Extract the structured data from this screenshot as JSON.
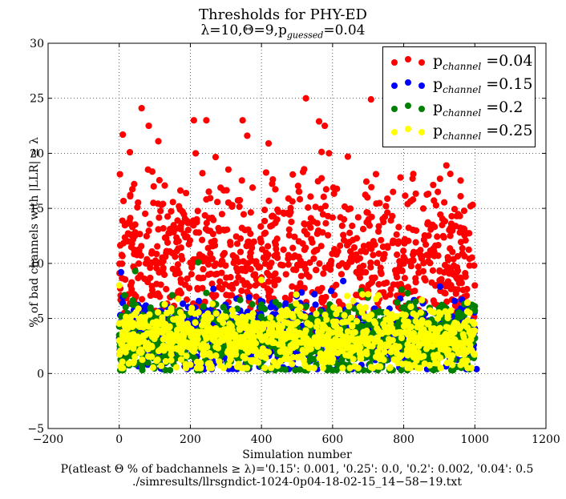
{
  "chart_data": {
    "type": "scatter",
    "title": "Thresholds for PHY-ED",
    "subtitle": "λ=10,Θ=9,p_guessed=0.04",
    "xlabel": "Simulation number",
    "ylabel": "% of bad channels with |LLR| ≥ λ",
    "xlim": [
      -200,
      1200
    ],
    "ylim": [
      -5,
      30
    ],
    "x_ticks": [
      -200,
      0,
      200,
      400,
      600,
      800,
      1000,
      1200
    ],
    "y_ticks": [
      -5,
      0,
      5,
      10,
      15,
      20,
      25,
      30
    ],
    "x_tick_labels": [
      "−200",
      "0",
      "200",
      "400",
      "600",
      "800",
      "1000",
      "1200"
    ],
    "y_tick_labels": [
      "−5",
      "0",
      "5",
      "10",
      "15",
      "20",
      "25",
      "30"
    ],
    "grid": true,
    "legend_position": "top-right",
    "series": [
      {
        "name": "p_channel =0.04",
        "label_main": "p",
        "label_sub": "channel",
        "label_val": " =0.04",
        "color": "#ff0000",
        "y_center": 9.8,
        "y_spread": 3.4,
        "y_min": 3.5,
        "y_max": 25,
        "highlights": [
          [
            2,
            18.1
          ],
          [
            10,
            21.7
          ],
          [
            30,
            20.1
          ],
          [
            42,
            17.2
          ],
          [
            63,
            24.1
          ],
          [
            83,
            22.5
          ],
          [
            210,
            23.0
          ],
          [
            245,
            23.0
          ],
          [
            215,
            20.0
          ],
          [
            347,
            23.0
          ],
          [
            360,
            21.6
          ],
          [
            420,
            20.9
          ],
          [
            525,
            25.0
          ],
          [
            562,
            22.9
          ],
          [
            578,
            22.5
          ],
          [
            643,
            19.7
          ],
          [
            708,
            24.9
          ],
          [
            920,
            18.9
          ],
          [
            825,
            17.7
          ],
          [
            960,
            16.1
          ]
        ]
      },
      {
        "name": "p_channel =0.15",
        "label_main": "p",
        "label_sub": "channel",
        "label_val": " =0.15",
        "color": "#0000ff",
        "y_center": 3.4,
        "y_spread": 1.5,
        "y_min": 0.4,
        "y_max": 9.3,
        "highlights": [
          [
            5,
            9.2
          ],
          [
            10,
            6.4
          ],
          [
            80,
            0.8
          ],
          [
            330,
            6.8
          ],
          [
            470,
            3.8
          ],
          [
            630,
            8.4
          ],
          [
            790,
            6.8
          ],
          [
            810,
            2.7
          ],
          [
            900,
            5.0
          ],
          [
            1005,
            0.4
          ]
        ]
      },
      {
        "name": "p_channel =0.2",
        "label_main": "p",
        "label_sub": "channel",
        "label_val": " =0.2",
        "color": "#008000",
        "y_center": 3.3,
        "y_spread": 1.5,
        "y_min": 0.3,
        "y_max": 10.2,
        "highlights": [
          [
            3,
            0.3
          ],
          [
            45,
            9.3
          ],
          [
            130,
            0.3
          ],
          [
            222,
            10.1
          ],
          [
            360,
            0.4
          ],
          [
            500,
            6.3
          ],
          [
            680,
            7.5
          ],
          [
            810,
            0.3
          ],
          [
            970,
            6.3
          ],
          [
            1000,
            6.1
          ]
        ]
      },
      {
        "name": "p_channel =0.25",
        "label_main": "p",
        "label_sub": "channel",
        "label_val": " =0.25",
        "color": "#ffff00",
        "y_center": 3.2,
        "y_spread": 1.4,
        "y_min": 0.5,
        "y_max": 8.6,
        "highlights": [
          [
            0,
            8.0
          ],
          [
            200,
            0.8
          ],
          [
            400,
            8.5
          ],
          [
            700,
            7.2
          ],
          [
            990,
            0.5
          ]
        ]
      }
    ],
    "x_range_data": [
      0,
      1000
    ],
    "points_per_series": 1000
  },
  "footer": {
    "line1": "P(atleast Θ % of badchannels ≥ λ)='0.15': 0.001, '0.25': 0.0, '0.2': 0.002, '0.04': 0.5",
    "line2": "./simresults/llrsgndict-1024-0p04-18-02-15_14−58−19.txt"
  }
}
